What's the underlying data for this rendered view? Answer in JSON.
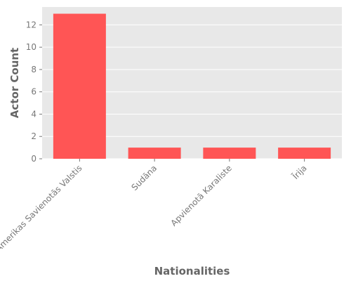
{
  "chart_data": {
    "type": "bar",
    "title": "",
    "xlabel": "Nationalities",
    "ylabel": "Actor Count",
    "categories": [
      "Amerikas Savienotās Valstis",
      "Sudāna",
      "Apvienotā Karaliste",
      "Īrija"
    ],
    "values": [
      13,
      1,
      1,
      1
    ],
    "ylim": [
      0,
      13.6
    ],
    "yticks": [
      0,
      2,
      4,
      6,
      8,
      10,
      12
    ],
    "ytick_labels": [
      "0",
      "2",
      "4",
      "6",
      "8",
      "10",
      "12"
    ],
    "grid": true,
    "legend": "none",
    "colors": {
      "bar": "#ff5555",
      "plot_background": "#e8e8e8",
      "grid": "#ffffff",
      "tick_text": "#777777",
      "axis_title": "#666666"
    }
  }
}
